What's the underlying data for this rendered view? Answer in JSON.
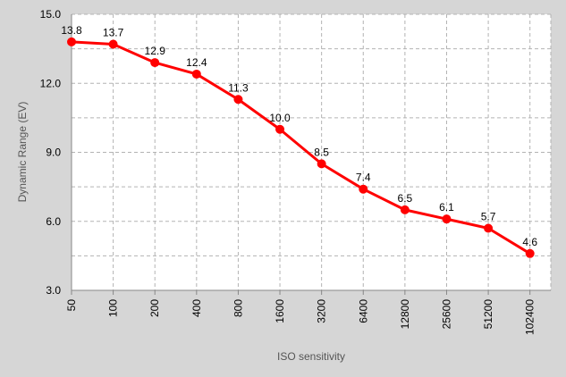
{
  "chart_data": {
    "type": "line",
    "xlabel": "ISO sensitivity",
    "ylabel": "Dynamic Range (EV)",
    "categories": [
      "50",
      "100",
      "200",
      "400",
      "800",
      "1600",
      "3200",
      "6400",
      "12800",
      "25600",
      "51200",
      "102400"
    ],
    "values": [
      13.8,
      13.7,
      12.9,
      12.4,
      11.3,
      10.0,
      8.5,
      7.4,
      6.5,
      6.1,
      5.7,
      4.6
    ],
    "data_labels": [
      "13.8",
      "13.7",
      "12.9",
      "12.4",
      "11.3",
      "10.0",
      "8.5",
      "7.4",
      "6.5",
      "6.1",
      "5.7",
      "4.6"
    ],
    "ylim": [
      3.0,
      15.0
    ],
    "yticks": [
      "3.0",
      "6.0",
      "9.0",
      "12.0",
      "15.0"
    ],
    "y_minor_step": 1.5,
    "grid": true,
    "line_color": "#ff0000",
    "background": "#d6d6d6",
    "plot_background": "#ffffff"
  }
}
